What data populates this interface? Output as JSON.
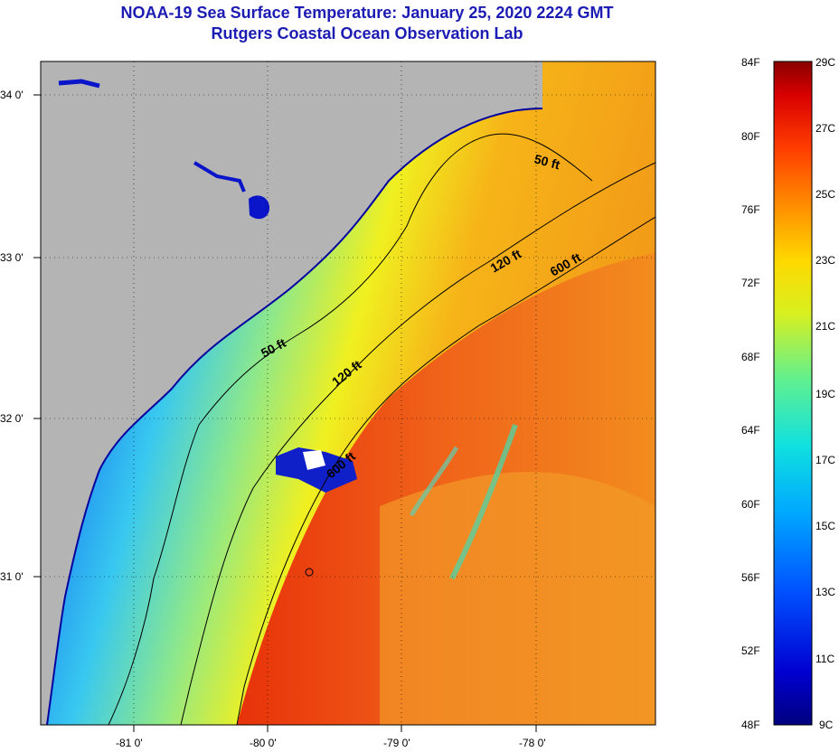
{
  "title": {
    "line1": "NOAA-19 Sea Surface Temperature:  January 25, 2020 2224 GMT",
    "line2": "Rutgers Coastal Ocean Observation Lab"
  },
  "map": {
    "lon_labels": [
      "-81 0'",
      "-80 0'",
      "-79 0'",
      "-78 0'"
    ],
    "lat_labels": [
      "34 0'",
      "33 0'",
      "32 0'",
      "31 0'"
    ],
    "contours": [
      {
        "label": "50 ft"
      },
      {
        "label": "50 ft"
      },
      {
        "label": "120 ft"
      },
      {
        "label": "120 ft"
      },
      {
        "label": "600 ft"
      },
      {
        "label": "600 ft"
      }
    ],
    "colors": {
      "land": "#b4b4b4",
      "cold": "#0a14c8",
      "warm": "#e63c0a"
    }
  },
  "colorbar": {
    "fahrenheit": [
      "84F",
      "80F",
      "76F",
      "72F",
      "68F",
      "64F",
      "60F",
      "56F",
      "52F",
      "48F"
    ],
    "celsius": [
      "29C",
      "27C",
      "25C",
      "23C",
      "21C",
      "19C",
      "17C",
      "15C",
      "13C",
      "11C",
      "9C"
    ]
  }
}
